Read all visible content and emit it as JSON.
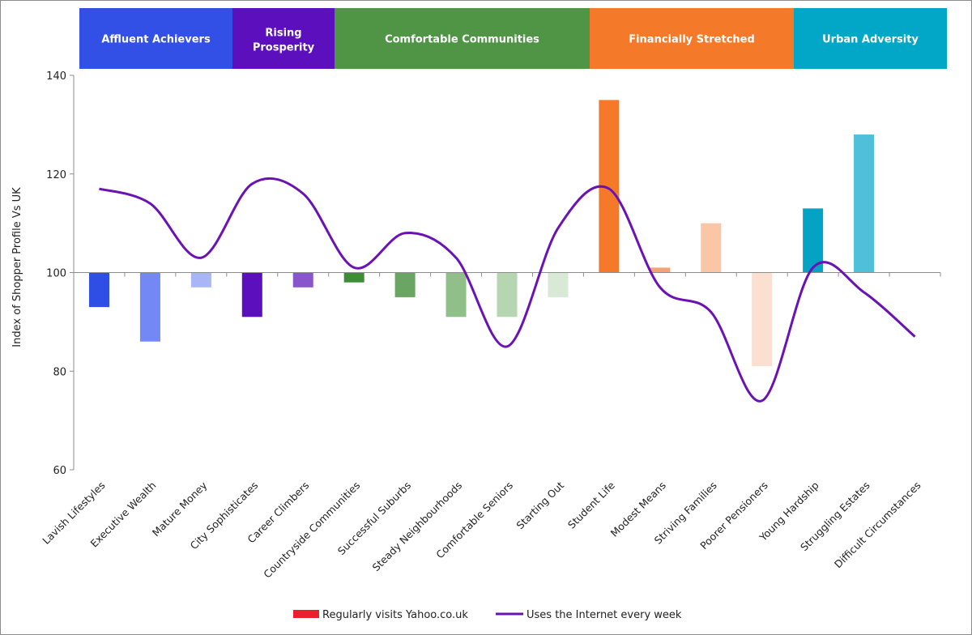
{
  "chart_data": {
    "type": "bar",
    "title": "",
    "xlabel": "",
    "ylabel": "Index of Shopper Profile Vs UK",
    "ylim": [
      60,
      140
    ],
    "yticks": [
      60,
      80,
      100,
      120,
      140
    ],
    "baseline": 100,
    "grid": false,
    "legend_position": "bottom",
    "categories": [
      "Lavish Lifestyles",
      "Executive Wealth",
      "Mature Money",
      "City Sophisticates",
      "Career Climbers",
      "Countryside Communities",
      "Successful Suburbs",
      "Steady Neighbourhoods",
      "Comfortable Seniors",
      "Starting Out",
      "Student Life",
      "Modest Means",
      "Striving Families",
      "Poorer Pensioners",
      "Young Hardship",
      "Struggling Estates",
      "Difficult Circumstances"
    ],
    "groups": [
      {
        "label": "Affluent Achievers",
        "start": 0,
        "end": 2,
        "color": "#3350e6"
      },
      {
        "label": "Rising Prosperity",
        "start": 3,
        "end": 4,
        "color": "#5b0fbd"
      },
      {
        "label": "Comfortable Communities",
        "start": 5,
        "end": 9,
        "color": "#4f9545"
      },
      {
        "label": "Financially Stretched",
        "start": 10,
        "end": 13,
        "color": "#f47a2a"
      },
      {
        "label": "Urban Adversity",
        "start": 14,
        "end": 16,
        "color": "#02a7c7"
      }
    ],
    "series": [
      {
        "name": "Regularly visits Yahoo.co.uk",
        "type": "bar",
        "legend_color": "#e8202f",
        "values": [
          93,
          86,
          97,
          91,
          97,
          98,
          95,
          91,
          91,
          95,
          135,
          101,
          110,
          81,
          113,
          128,
          null
        ],
        "colors": [
          "#2f4ee6",
          "#7388f5",
          "#a8b6f5",
          "#5b0fbd",
          "#8855cc",
          "#3e8c37",
          "#6aa564",
          "#90bf8a",
          "#b6d5b1",
          "#d8e9d5",
          "#f47a2a",
          "#f4a374",
          "#f9c6a6",
          "#fbe0d2",
          "#04a3c4",
          "#4fc0d9",
          "#ffffff"
        ]
      },
      {
        "name": "Uses the Internet every week",
        "type": "line",
        "color": "#6a12b3",
        "values": [
          117,
          114,
          103,
          118,
          116,
          101,
          108,
          103,
          85,
          109,
          117,
          97,
          92,
          74,
          101,
          96,
          87
        ]
      }
    ]
  }
}
